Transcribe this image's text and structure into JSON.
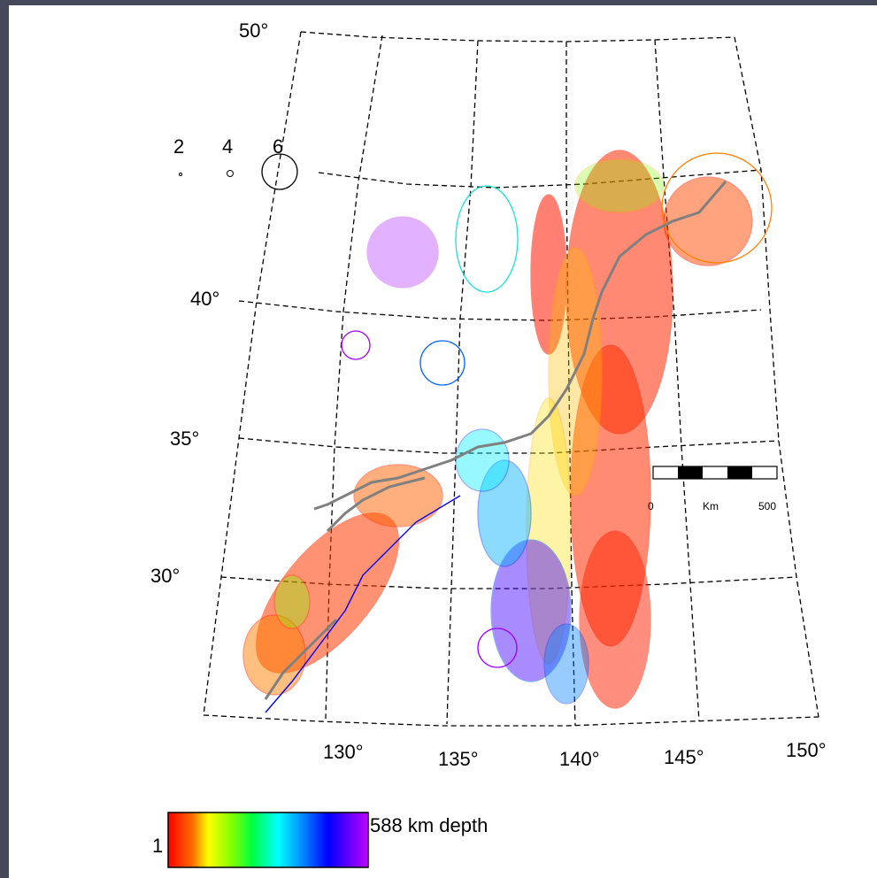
{
  "map": {
    "latitude_labels": [
      "50°",
      "40°",
      "35°",
      "30°"
    ],
    "longitude_labels": [
      "130°",
      "135°",
      "140°",
      "145°",
      "150°"
    ],
    "magnitude_legend": {
      "labels": [
        "2",
        "4",
        "6"
      ]
    },
    "scale_bar": {
      "start": "0",
      "unit": "Km",
      "end": "500"
    },
    "depth_colorbar": {
      "min_label": "1",
      "max_label": "588 km depth",
      "colors": [
        "#ff0000",
        "#ff5a00",
        "#ffa000",
        "#ffff00",
        "#80ff00",
        "#00ff00",
        "#00ffc0",
        "#00ffff",
        "#00a0ff",
        "#0050ff",
        "#0000ff",
        "#6400ff",
        "#b400ff"
      ]
    },
    "colors": {
      "background": "#46495a",
      "coastline": "#808080",
      "trench": "#0000ff",
      "shallow": "#ff2000",
      "deep": "#8000ff"
    }
  }
}
